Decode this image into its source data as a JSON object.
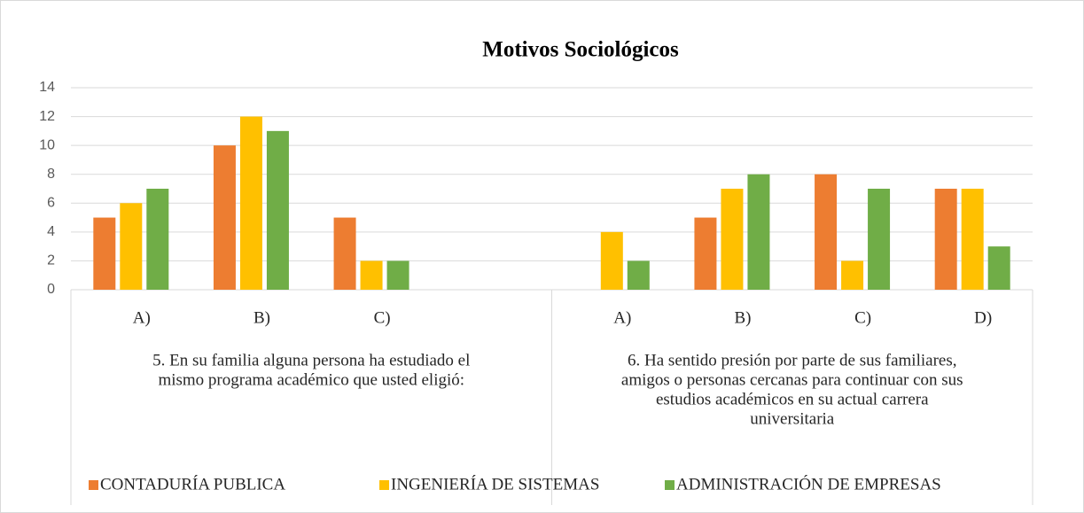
{
  "chart_data": {
    "type": "bar",
    "title": "Motivos Sociológicos",
    "groups": [
      {
        "label": [
          "5. En su familia alguna persona ha estudiado el",
          "mismo programa académico que usted eligió:"
        ],
        "categories": [
          "A)",
          "B)",
          "C)",
          null
        ]
      },
      {
        "label": [
          "6.  Ha sentido presión por parte de sus familiares,",
          "amigos o personas cercanas para continuar con sus",
          "estudios académicos en su actual carrera",
          "universitaria"
        ],
        "categories": [
          "A)",
          "B)",
          "C)",
          "D)"
        ]
      }
    ],
    "series": [
      {
        "name": "CONTADURÍA PUBLICA",
        "color": "#ED7D31",
        "values": [
          5,
          10,
          5,
          null,
          0,
          5,
          8,
          7
        ]
      },
      {
        "name": "INGENIERÍA DE SISTEMAS",
        "color": "#FFC000",
        "values": [
          6,
          12,
          2,
          null,
          4,
          7,
          2,
          7
        ]
      },
      {
        "name": "ADMINISTRACIÓN DE EMPRESAS",
        "color": "#70AD47",
        "values": [
          7,
          11,
          2,
          null,
          2,
          8,
          7,
          3
        ]
      }
    ],
    "ylim": [
      0,
      14
    ],
    "yticks": [
      0,
      2,
      4,
      6,
      8,
      10,
      12,
      14
    ],
    "grid": true,
    "legend": "bottom"
  }
}
